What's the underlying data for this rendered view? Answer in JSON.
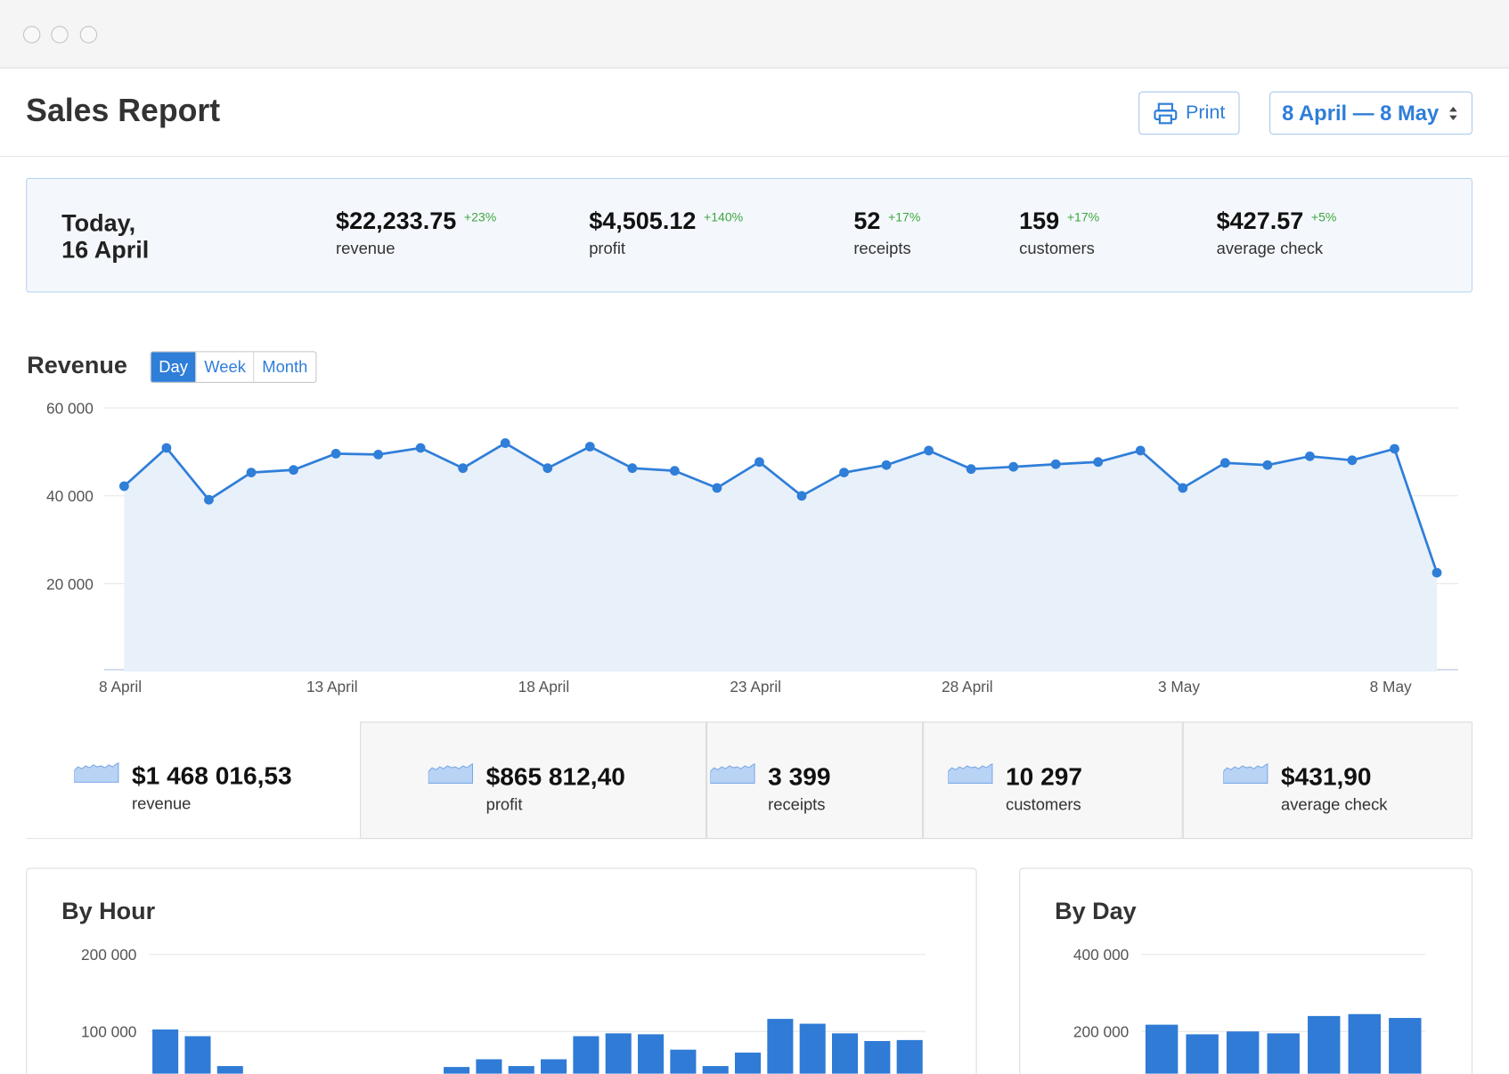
{
  "header": {
    "title": "Sales Report",
    "print": "Print",
    "range": "8 April — 8 May"
  },
  "today": {
    "label": [
      "Today,",
      "16 April"
    ],
    "stats": [
      {
        "value": "$22,233.75",
        "change": "+23%",
        "label": "revenue"
      },
      {
        "value": "$4,505.12",
        "change": "+140%",
        "label": "profit"
      },
      {
        "value": "52",
        "change": "+17%",
        "label": "receipts"
      },
      {
        "value": "159",
        "change": "+17%",
        "label": "customers"
      },
      {
        "value": "$427.57",
        "change": "+5%",
        "label": "average check"
      }
    ]
  },
  "tabs": {
    "items": [
      "Day",
      "Week",
      "Month"
    ],
    "active": 0
  },
  "totals": {
    "active": 0,
    "items": [
      {
        "value": "$1 468 016,53",
        "label": "revenue"
      },
      {
        "value": "$865 812,40",
        "label": "profit"
      },
      {
        "value": "3 399",
        "label": "receipts"
      },
      {
        "value": "10 297",
        "label": "customers"
      },
      {
        "value": "$431,90",
        "label": "average check"
      }
    ]
  },
  "chart_data": [
    {
      "type": "line",
      "title": "Revenue",
      "color": "#2f7ed8",
      "categories": [
        "8 April",
        null,
        null,
        null,
        null,
        "13 April",
        null,
        null,
        null,
        null,
        "18 April",
        null,
        null,
        null,
        null,
        "23 April",
        null,
        null,
        null,
        null,
        "28 April",
        null,
        null,
        null,
        null,
        "3 May",
        null,
        null,
        null,
        null,
        "8 May",
        null
      ],
      "values": [
        42200,
        50900,
        39100,
        45300,
        45900,
        49600,
        49400,
        50900,
        46300,
        52000,
        46300,
        51200,
        46300,
        45700,
        41800,
        47700,
        40000,
        45300,
        47000,
        50300,
        46100,
        46600,
        47200,
        47700,
        50300,
        41800,
        47500,
        47000,
        49000,
        48100,
        50700,
        22500
      ],
      "ylim": [
        0,
        60000
      ],
      "yticks": [
        {
          "value": 20000,
          "label": "20 000"
        },
        {
          "value": 40000,
          "label": "40 000"
        },
        {
          "value": 60000,
          "label": "60 000"
        }
      ],
      "grid": true
    },
    {
      "type": "bar",
      "title": "By Hour",
      "color": "#2f7bd6",
      "values": [
        102500,
        93800,
        55000,
        0,
        0,
        0,
        0,
        0,
        0,
        53800,
        63800,
        55000,
        63800,
        93800,
        97500,
        96300,
        76300,
        55000,
        72500,
        116300,
        110000,
        97500,
        87500,
        88800
      ],
      "ylim": [
        0,
        200000
      ],
      "yticks": [
        {
          "value": 100000,
          "label": "100 000"
        },
        {
          "value": 200000,
          "label": "200 000"
        }
      ],
      "grid": true
    },
    {
      "type": "bar",
      "title": "By Day",
      "color": "#2f7bd6",
      "values": [
        217500,
        192500,
        200000,
        195000,
        240000,
        245000,
        235000
      ],
      "ylim": [
        0,
        400000
      ],
      "yticks": [
        {
          "value": 200000,
          "label": "200 000"
        },
        {
          "value": 400000,
          "label": "400 000"
        }
      ],
      "grid": true
    }
  ]
}
